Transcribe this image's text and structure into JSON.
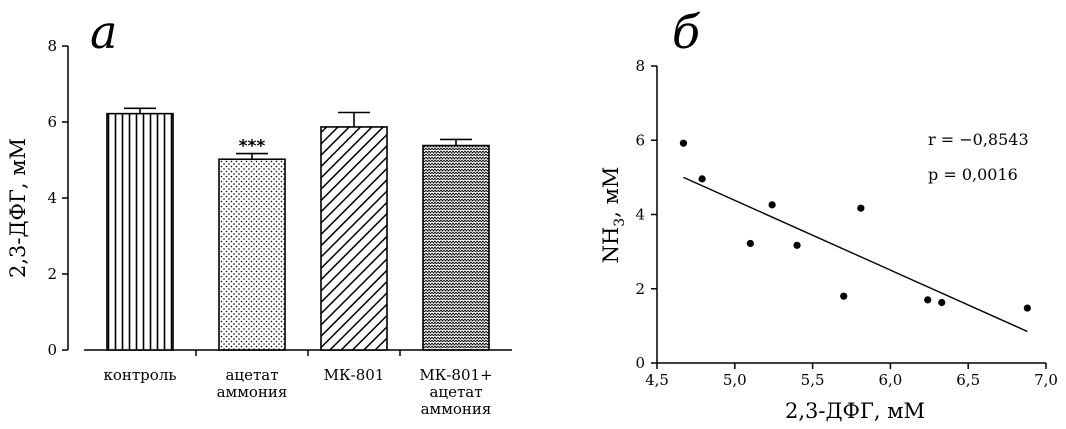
{
  "chart_data": [
    {
      "type": "bar",
      "panel_label": "а",
      "ylabel": "2,3-ДФГ, мМ",
      "xlabel": "",
      "ylim": [
        0,
        8
      ],
      "yticks": [
        0,
        2,
        4,
        6,
        8
      ],
      "categories": [
        [
          "контроль"
        ],
        [
          "ацетат",
          "аммония"
        ],
        [
          "МК-801"
        ],
        [
          "МК-801+",
          "ацетат",
          "аммония"
        ]
      ],
      "values": [
        6.22,
        5.02,
        5.87,
        5.38
      ],
      "errors": [
        0.14,
        0.15,
        0.38,
        0.16
      ],
      "patterns": [
        "vertical-lines",
        "dots",
        "diagonal-lines",
        "zigzag"
      ],
      "annotations": [
        {
          "category_index": 1,
          "text": "***"
        }
      ]
    },
    {
      "type": "scatter",
      "panel_label": "б",
      "xlabel": "2,3-ДФГ, мМ",
      "ylabel_main": "NH",
      "ylabel_sub": "3",
      "ylabel_tail": ", мМ",
      "xlim": [
        4.5,
        7.0
      ],
      "ylim": [
        0,
        8
      ],
      "xticks": [
        4.5,
        5.0,
        5.5,
        6.0,
        6.5,
        7.0
      ],
      "xtick_labels": [
        "4,5",
        "5,0",
        "5,5",
        "6,0",
        "6,5",
        "7,0"
      ],
      "yticks": [
        0,
        2,
        4,
        6,
        8
      ],
      "points": [
        {
          "x": 4.67,
          "y": 5.92
        },
        {
          "x": 4.79,
          "y": 4.96
        },
        {
          "x": 5.1,
          "y": 3.22
        },
        {
          "x": 5.24,
          "y": 4.26
        },
        {
          "x": 5.4,
          "y": 3.17
        },
        {
          "x": 5.7,
          "y": 1.8
        },
        {
          "x": 5.81,
          "y": 4.17
        },
        {
          "x": 6.24,
          "y": 1.7
        },
        {
          "x": 6.33,
          "y": 1.63
        },
        {
          "x": 6.88,
          "y": 1.48
        }
      ],
      "fit_line": {
        "x": [
          4.67,
          6.88
        ],
        "y": [
          5.0,
          0.85
        ]
      },
      "stats": {
        "r": "r = −0,8543",
        "p": "p = 0,0016"
      }
    }
  ]
}
